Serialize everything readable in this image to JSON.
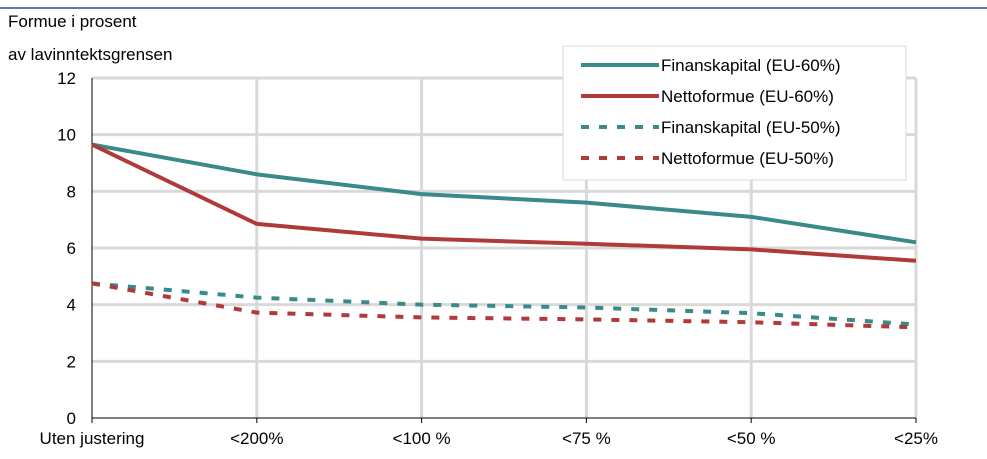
{
  "chart_data": {
    "type": "line",
    "title": "",
    "ylabel": [
      "Formue i prosent",
      "av lavinntektsgrensen"
    ],
    "xlabel": "",
    "categories": [
      "Uten justering",
      "<200%",
      "<100 %",
      "<75 %",
      "<50 %",
      "<25%"
    ],
    "ylim": [
      0,
      12
    ],
    "yticks": [
      0,
      2,
      4,
      6,
      8,
      10,
      12
    ],
    "grid": true,
    "legend_position": "top-right",
    "series": [
      {
        "name": "Finanskapital (EU-60%)",
        "values": [
          9.65,
          8.6,
          7.9,
          7.6,
          7.1,
          6.2
        ],
        "color": "#3a8a8a",
        "style": "solid"
      },
      {
        "name": "Nettoformue (EU-60%)",
        "values": [
          9.65,
          6.85,
          6.33,
          6.15,
          5.95,
          5.55
        ],
        "color": "#b03a3a",
        "style": "solid"
      },
      {
        "name": "Finanskapital (EU-50%)",
        "values": [
          4.75,
          4.25,
          4.0,
          3.9,
          3.7,
          3.3
        ],
        "color": "#3a8a8a",
        "style": "dotted"
      },
      {
        "name": "Nettoformue (EU-50%)",
        "values": [
          4.75,
          3.72,
          3.55,
          3.48,
          3.38,
          3.2
        ],
        "color": "#b03a3a",
        "style": "dotted"
      }
    ]
  },
  "colors": {
    "top_rule": "#2e4a8a",
    "grid": "#d9d9d9",
    "axis": "#000000"
  }
}
